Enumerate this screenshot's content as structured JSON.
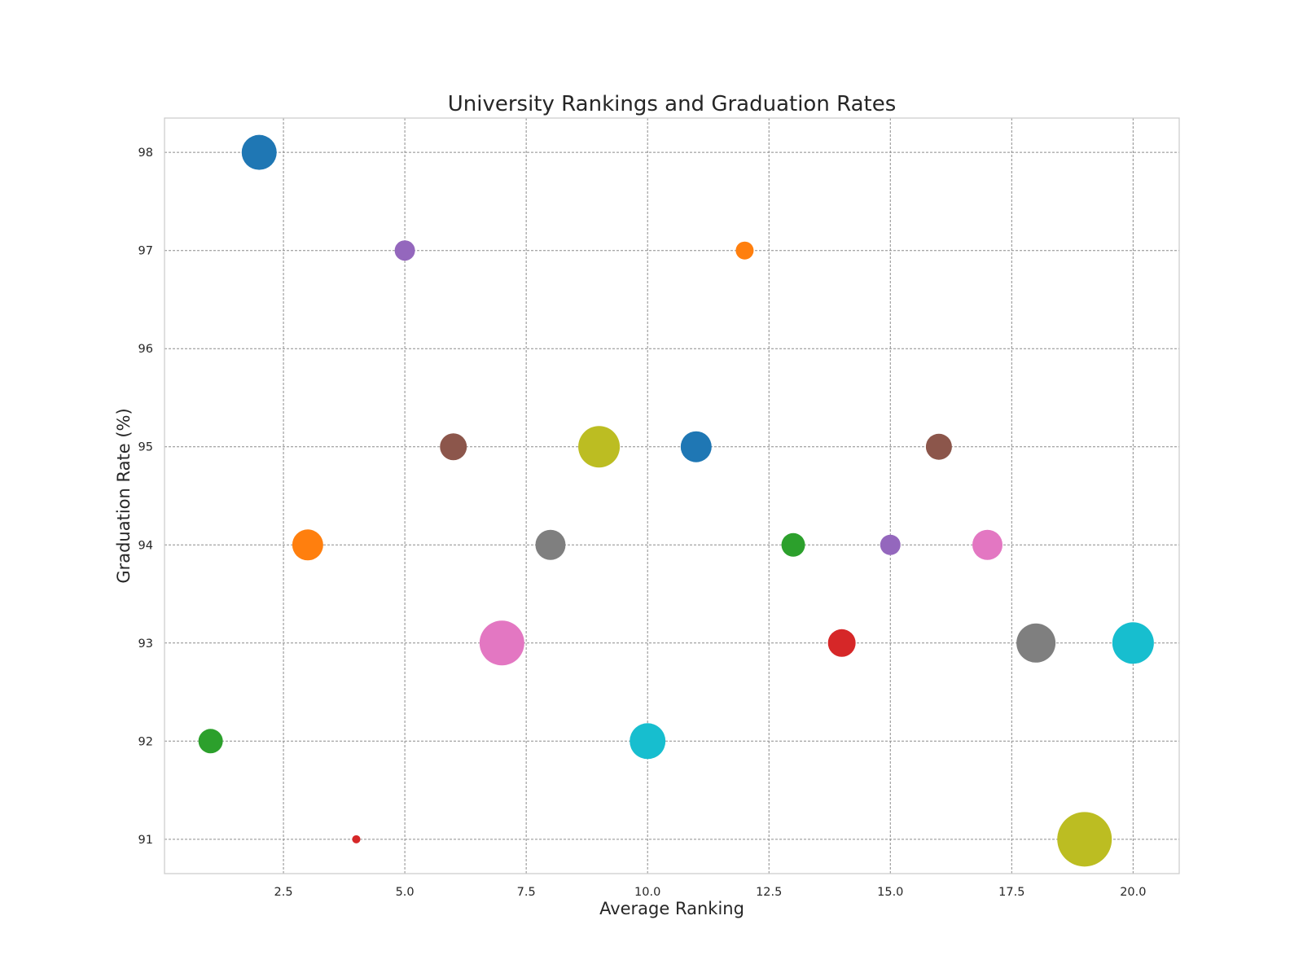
{
  "chart_data": {
    "type": "scatter",
    "title": "University Rankings and Graduation Rates",
    "xlabel": "Average Ranking",
    "ylabel": "Graduation Rate (%)",
    "xlim": [
      0.05,
      20.95
    ],
    "ylim": [
      90.65,
      98.35
    ],
    "xticks": [
      2.5,
      5.0,
      7.5,
      10.0,
      12.5,
      15.0,
      17.5,
      20.0
    ],
    "xtick_labels": [
      "2.5",
      "5.0",
      "7.5",
      "10.0",
      "12.5",
      "15.0",
      "17.5",
      "20.0"
    ],
    "yticks": [
      91,
      92,
      93,
      94,
      95,
      96,
      97,
      98
    ],
    "ytick_labels": [
      "91",
      "92",
      "93",
      "94",
      "95",
      "96",
      "97",
      "98"
    ],
    "grid": true,
    "legend": "none",
    "points": [
      {
        "x": 1,
        "y": 92,
        "size": 30,
        "color": "#2ca02c"
      },
      {
        "x": 2,
        "y": 98,
        "size": 43,
        "color": "#1f77b4"
      },
      {
        "x": 3,
        "y": 94,
        "size": 38,
        "color": "#ff7f0e"
      },
      {
        "x": 4,
        "y": 91,
        "size": 10,
        "color": "#d62728"
      },
      {
        "x": 5,
        "y": 97,
        "size": 25,
        "color": "#9467bd"
      },
      {
        "x": 6,
        "y": 95,
        "size": 33,
        "color": "#8c564b"
      },
      {
        "x": 7,
        "y": 93,
        "size": 55,
        "color": "#e377c2"
      },
      {
        "x": 8,
        "y": 94,
        "size": 37,
        "color": "#7f7f7f"
      },
      {
        "x": 9,
        "y": 95,
        "size": 51,
        "color": "#bcbd22"
      },
      {
        "x": 10,
        "y": 92,
        "size": 44,
        "color": "#17becf"
      },
      {
        "x": 11,
        "y": 95,
        "size": 38,
        "color": "#1f77b4"
      },
      {
        "x": 12,
        "y": 97,
        "size": 22,
        "color": "#ff7f0e"
      },
      {
        "x": 13,
        "y": 94,
        "size": 29,
        "color": "#2ca02c"
      },
      {
        "x": 14,
        "y": 93,
        "size": 34,
        "color": "#d62728"
      },
      {
        "x": 15,
        "y": 94,
        "size": 25,
        "color": "#9467bd"
      },
      {
        "x": 16,
        "y": 95,
        "size": 32,
        "color": "#8c564b"
      },
      {
        "x": 17,
        "y": 94,
        "size": 37,
        "color": "#e377c2"
      },
      {
        "x": 18,
        "y": 93,
        "size": 48,
        "color": "#7f7f7f"
      },
      {
        "x": 19,
        "y": 91,
        "size": 67,
        "color": "#bcbd22"
      },
      {
        "x": 20,
        "y": 93,
        "size": 51,
        "color": "#17becf"
      }
    ]
  }
}
